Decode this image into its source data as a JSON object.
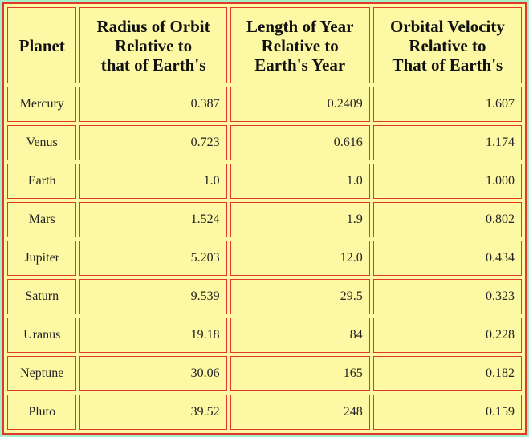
{
  "table": {
    "header": [
      [
        "Planet"
      ],
      [
        "Radius of Orbit",
        "Relative to",
        "that of Earth's"
      ],
      [
        "Length of Year",
        "Relative to",
        "Earth's Year"
      ],
      [
        "Orbital Velocity",
        "Relative to",
        "That of Earth's"
      ]
    ],
    "rows": [
      [
        "Mercury",
        "0.387",
        "0.2409",
        "1.607"
      ],
      [
        "Venus",
        "0.723",
        "0.616",
        "1.174"
      ],
      [
        "Earth",
        "1.0",
        "1.0",
        "1.000"
      ],
      [
        "Mars",
        "1.524",
        "1.9",
        "0.802"
      ],
      [
        "Jupiter",
        "5.203",
        "12.0",
        "0.434"
      ],
      [
        "Saturn",
        "9.539",
        "29.5",
        "0.323"
      ],
      [
        "Uranus",
        "19.18",
        "84",
        "0.228"
      ],
      [
        "Neptune",
        "30.06",
        "165",
        "0.182"
      ],
      [
        "Pluto",
        "39.52",
        "248",
        "0.159"
      ]
    ]
  }
}
